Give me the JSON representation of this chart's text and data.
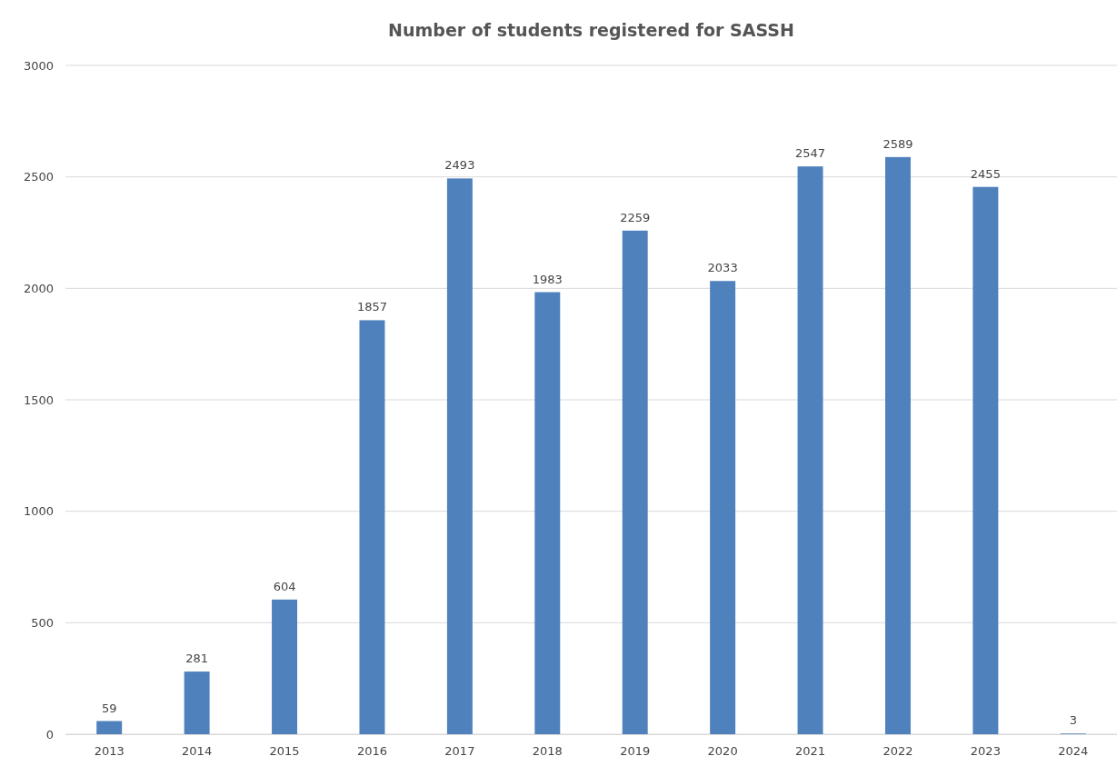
{
  "chart_data": {
    "type": "bar",
    "title": "Number of students registered for SASSH",
    "categories": [
      "2013",
      "2014",
      "2015",
      "2016",
      "2017",
      "2018",
      "2019",
      "2020",
      "2021",
      "2022",
      "2023",
      "2024"
    ],
    "values": [
      59,
      281,
      604,
      1857,
      2493,
      1983,
      2259,
      2033,
      2547,
      2589,
      2455,
      3
    ],
    "color": "#4f81bd",
    "ylim": [
      0,
      3000
    ],
    "yticks": [
      0,
      500,
      1000,
      1500,
      2000,
      2500,
      3000
    ],
    "grid": "y",
    "data_labels": true
  }
}
